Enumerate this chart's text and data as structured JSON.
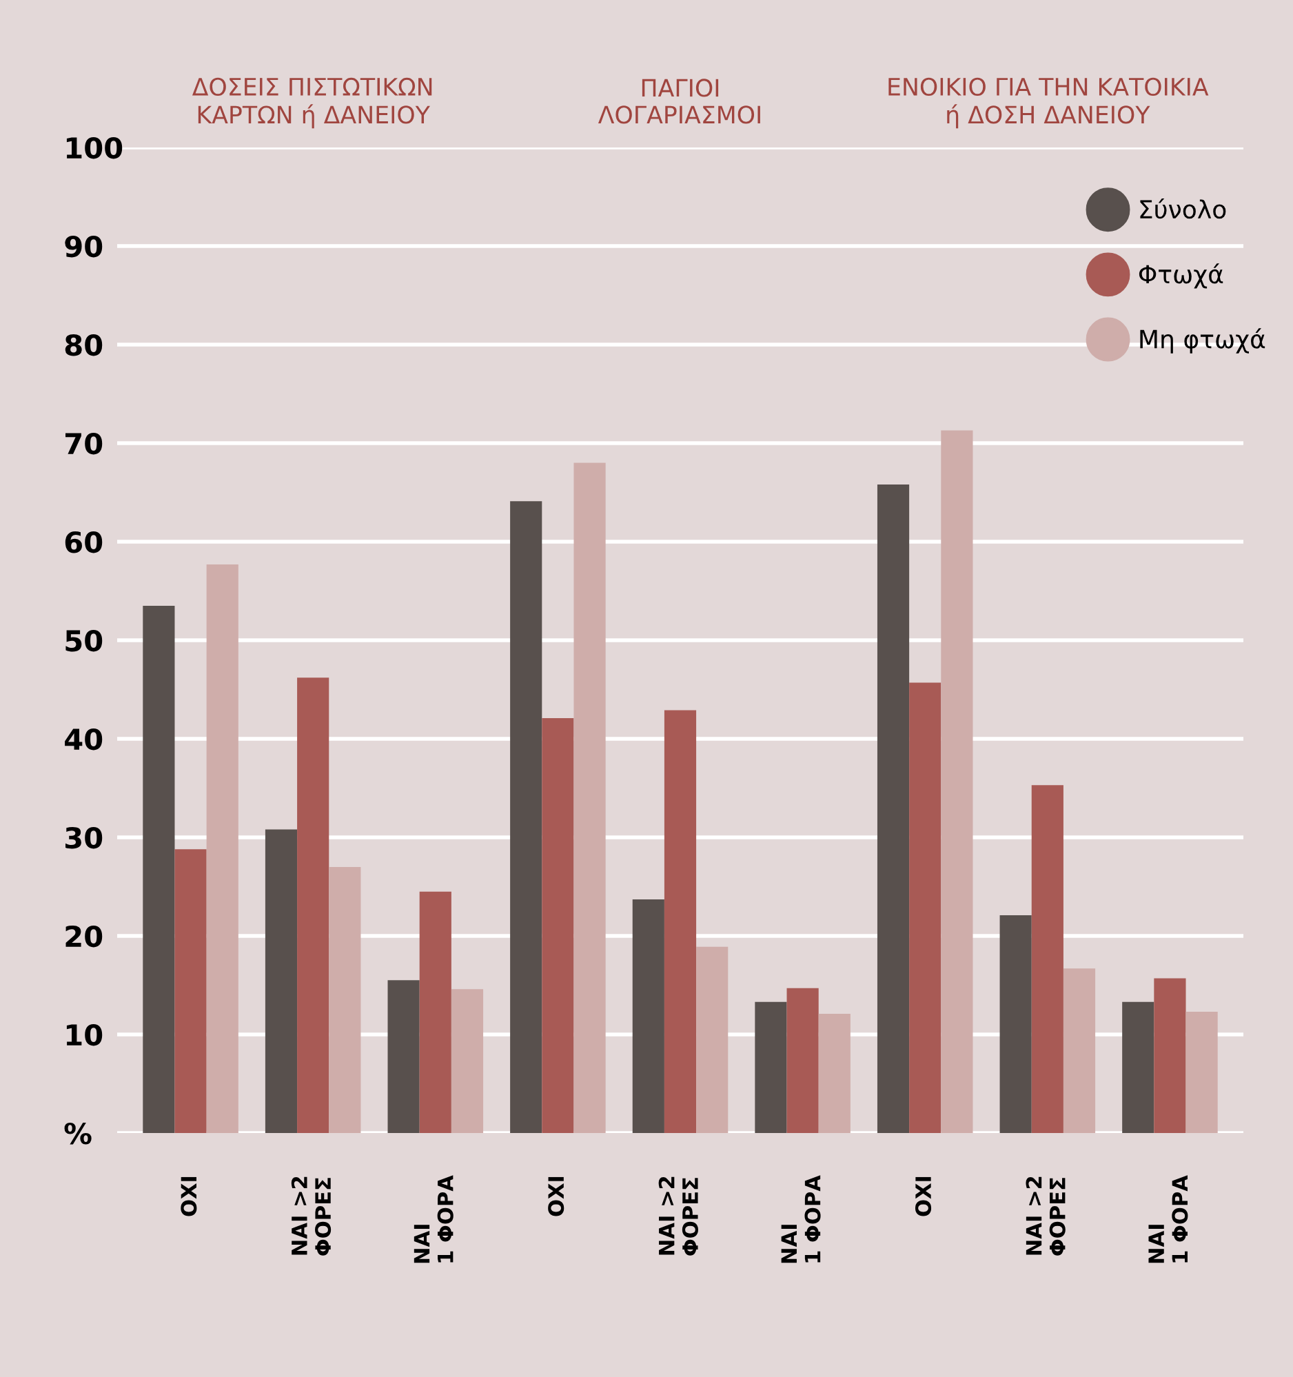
{
  "chart_data": {
    "type": "bar",
    "categories": [
      "ΟΧΙ",
      "ΝΑΙ >2\nΦΟΡΕΣ",
      "ΝΑΙ\n1 ΦΟΡΑ",
      "ΟΧΙ",
      "ΝΑΙ >2\nΦΟΡΕΣ",
      "ΝΑΙ\n1 ΦΟΡΑ",
      "ΟΧΙ",
      "ΝΑΙ >2\nΦΟΡΕΣ",
      "ΝΑΙ\n1 ΦΟΡΑ"
    ],
    "series": [
      {
        "name": "Σύνολο",
        "color": "#58504d",
        "values": [
          53.5,
          30.8,
          15.5,
          64.1,
          23.7,
          13.3,
          65.8,
          22.1,
          13.3
        ]
      },
      {
        "name": "Φτωχά",
        "color": "#a85a55",
        "values": [
          28.8,
          46.2,
          24.5,
          42.1,
          42.9,
          14.7,
          45.7,
          35.3,
          15.7
        ]
      },
      {
        "name": "Μη φτωχά",
        "color": "#cfadaa",
        "values": [
          57.7,
          27.0,
          14.6,
          68.0,
          18.9,
          12.1,
          71.3,
          16.7,
          12.3
        ]
      }
    ],
    "annotations": [
      "ΔΟΣΕΙΣ ΠΙΣΤΩΤΙΚΩΝ\nΚΑΡΤΩΝ ή ΔΑΝΕΙΟΥ",
      "ΠΑΓΙΟΙ\nΛΟΓΑΡΙΑΣΜΟΙ",
      "ΕΝΟΙΚΙΟ ΓΙΑ ΤΗΝ ΚΑΤΟΙΚΙΑ\nή ΔΟΣΗ ΔΑΝΕΙΟΥ"
    ],
    "ylim": [
      0,
      100
    ],
    "yticks": [
      {
        "value": 0,
        "label": "%"
      },
      10,
      20,
      30,
      40,
      50,
      60,
      70,
      80,
      90,
      100
    ],
    "grid": "y",
    "legend": "top right",
    "marker": "circle"
  }
}
